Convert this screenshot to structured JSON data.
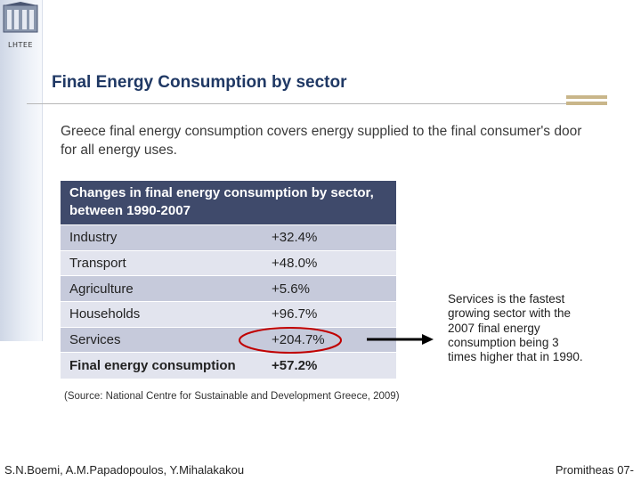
{
  "branding": {
    "org_label": "LHTEE"
  },
  "slide": {
    "title": "Final Energy Consumption by sector",
    "intro": "Greece final energy consumption covers energy supplied to the final consumer's door for all energy uses."
  },
  "table": {
    "header": "Changes in final energy consumption by sector, between 1990-2007",
    "rows": [
      {
        "sector": "Industry",
        "change": "+32.4%"
      },
      {
        "sector": "Transport",
        "change": "+48.0%"
      },
      {
        "sector": "Agriculture",
        "change": "+5.6%"
      },
      {
        "sector": "Households",
        "change": "+96.7%"
      },
      {
        "sector": "Services",
        "change": "+204.7%"
      },
      {
        "sector": "Final energy consumption",
        "change": "+57.2%"
      }
    ]
  },
  "source_note": "(Source: National Centre for Sustainable and Development Greece, 2009)",
  "callout": "Services is the fastest growing sector with the 2007 final energy consumption being 3 times higher that in 1990.",
  "footer": {
    "authors": "S.N.Boemi, A.M.Papadopoulos, Y.Mihalakakou",
    "project": "Promitheas 07-"
  },
  "colors": {
    "title": "#1f3864",
    "table_header": "#3f4a6b",
    "row_dark": "#c6cadb",
    "row_light": "#e2e4ee",
    "highlight": "#c00000",
    "accent": "#c9b68a"
  },
  "icons": [
    "building-logo-icon",
    "arrow-right-icon"
  ]
}
